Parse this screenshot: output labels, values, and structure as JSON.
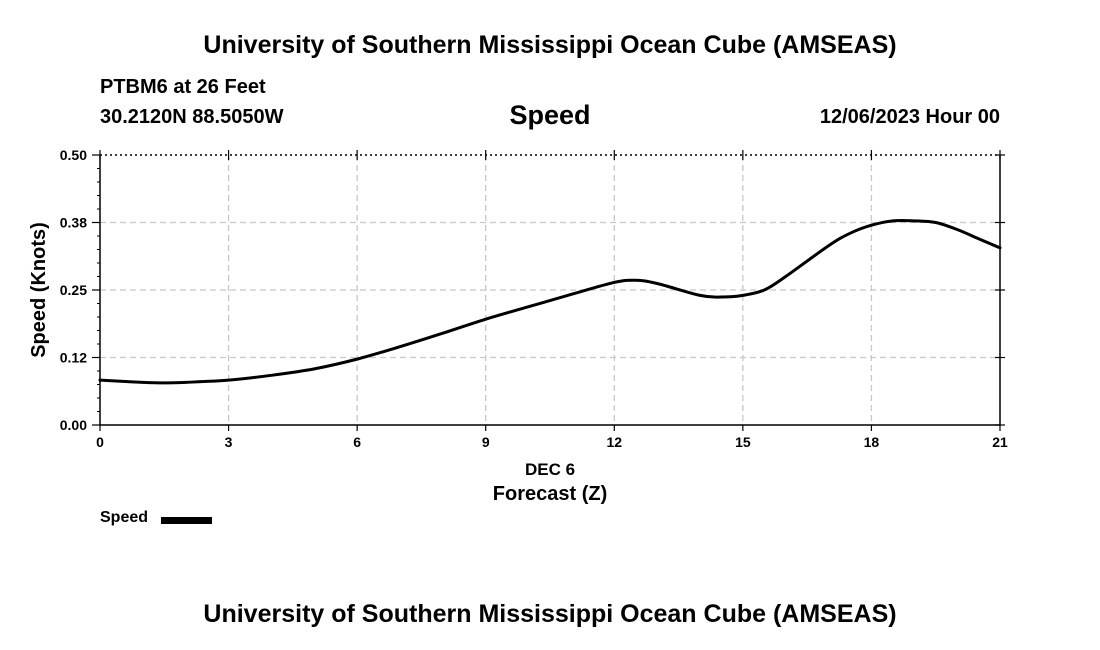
{
  "header": {
    "title": "University of Southern Mississippi Ocean Cube (AMSEAS)",
    "station": "PTBM6 at 26 Feet",
    "coordinates": "30.2120N  88.5050W",
    "datetime": "12/06/2023 Hour 00"
  },
  "footer": {
    "title": "University of Southern Mississippi Ocean Cube (AMSEAS)"
  },
  "legend": {
    "label": "Speed"
  },
  "chart_data": {
    "type": "line",
    "title": "Speed",
    "xlabel": "Forecast (Z)",
    "xsublabel": "DEC 6",
    "ylabel": "Speed (Knots)",
    "xlim": [
      0,
      21
    ],
    "ylim": [
      0,
      0.5
    ],
    "xticks": [
      0,
      3,
      6,
      9,
      12,
      15,
      18,
      21
    ],
    "xtick_labels": [
      "0",
      "3",
      "6",
      "9",
      "12",
      "15",
      "18",
      "21"
    ],
    "yticks": [
      0,
      0.125,
      0.25,
      0.375,
      0.5
    ],
    "ytick_labels": [
      "0.00",
      "0.12",
      "0.25",
      "0.38",
      "0.50"
    ],
    "grid": true,
    "line_color": "#000000",
    "grid_color": "#c8c8c8",
    "series": [
      {
        "name": "Speed",
        "x": [
          0,
          1,
          1.5,
          2,
          3,
          4,
          5,
          6,
          7,
          8,
          9,
          10,
          11,
          12,
          12.5,
          13,
          14,
          14.5,
          15,
          15.5,
          16,
          17,
          17.5,
          18,
          18.5,
          19,
          19.5,
          20,
          20.5,
          21
        ],
        "values": [
          0.083,
          0.079,
          0.078,
          0.079,
          0.083,
          0.092,
          0.104,
          0.122,
          0.145,
          0.17,
          0.196,
          0.219,
          0.242,
          0.264,
          0.268,
          0.262,
          0.24,
          0.237,
          0.24,
          0.25,
          0.275,
          0.332,
          0.355,
          0.37,
          0.378,
          0.378,
          0.375,
          0.362,
          0.345,
          0.328
        ]
      }
    ]
  }
}
